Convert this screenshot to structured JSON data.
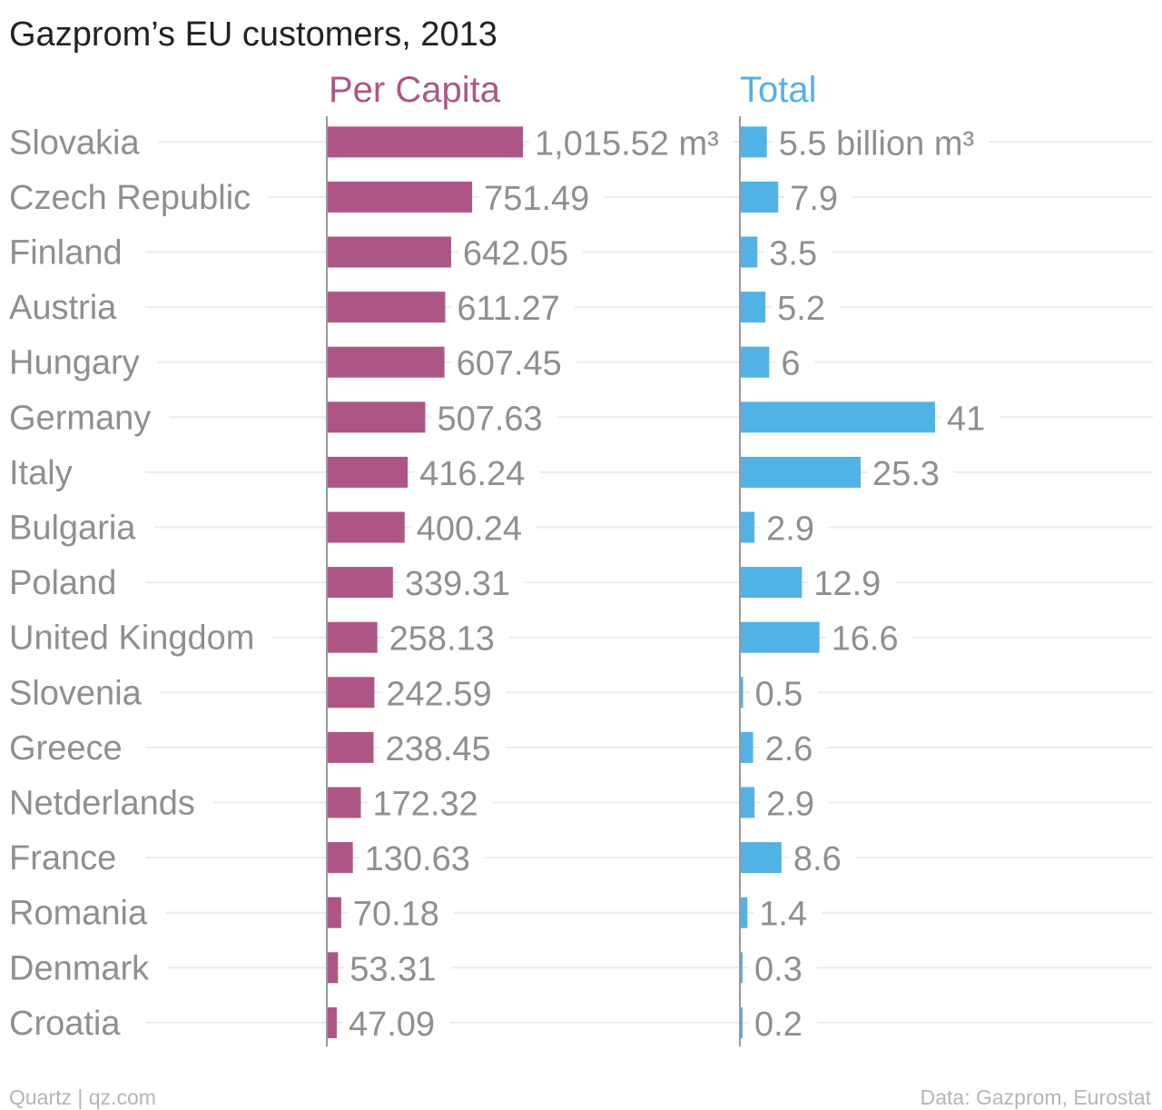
{
  "chart_data": {
    "type": "bar",
    "orientation": "horizontal",
    "title": "Gazprom’s EU customers, 2013",
    "categories": [
      "Slovakia",
      "Czech Republic",
      "Finland",
      "Austria",
      "Hungary",
      "Germany",
      "Italy",
      "Bulgaria",
      "Poland",
      "United Kingdom",
      "Slovenia",
      "Greece",
      "Netderlands",
      "France",
      "Romania",
      "Denmark",
      "Croatia"
    ],
    "series": [
      {
        "name": "Per Capita",
        "color": "#ad5686",
        "values": [
          1015.52,
          751.49,
          642.05,
          611.27,
          607.45,
          507.63,
          416.24,
          400.24,
          339.31,
          258.13,
          242.59,
          238.45,
          172.32,
          130.63,
          70.18,
          53.31,
          47.09
        ],
        "labels": [
          "1,015.52 m³",
          "751.49",
          "642.05",
          "611.27",
          "607.45",
          "507.63",
          "416.24",
          "400.24",
          "339.31",
          "258.13",
          "242.59",
          "238.45",
          "172.32",
          "130.63",
          "70.18",
          "53.31",
          "47.09"
        ],
        "xlim": [
          0,
          1015.52
        ]
      },
      {
        "name": "Total",
        "color": "#51b2e5",
        "values": [
          5.5,
          7.9,
          3.5,
          5.2,
          6,
          41,
          25.3,
          2.9,
          12.9,
          16.6,
          0.5,
          2.6,
          2.9,
          8.6,
          1.4,
          0.3,
          0.2
        ],
        "labels": [
          "5.5 billion m³",
          "7.9",
          "3.5",
          "5.2",
          "6",
          "41",
          "25.3",
          "2.9",
          "12.9",
          "16.6",
          "0.5",
          "2.6",
          "2.9",
          "8.6",
          "1.4",
          "0.3",
          "0.2"
        ],
        "xlim": [
          0,
          41
        ]
      }
    ],
    "grid": true,
    "legend": "none"
  },
  "footer": {
    "credit": "Quartz | qz.com",
    "source": "Data: Gazprom, Eurostat"
  }
}
